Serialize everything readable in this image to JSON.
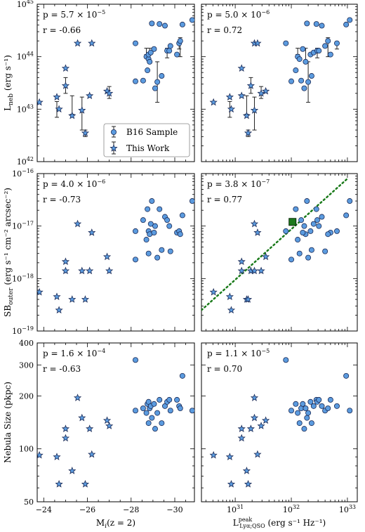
{
  "chart_data": {
    "type": "scatter",
    "x_axes": {
      "left": {
        "label": "M",
        "label_sub": "i",
        "label_rest": "(z = 2)",
        "lim": [
          -23.7,
          -30.9
        ],
        "ticks": [
          -24,
          -26,
          -28,
          -30
        ],
        "tick_labels": [
          "-24",
          "-26",
          "-28",
          "-30"
        ]
      },
      "right": {
        "label": "L",
        "label_sup": "peak",
        "label_sub": "Lyα;QSO",
        "label_rest": "(erg s⁻¹ Hz⁻¹)",
        "log": true,
        "lim": [
          2.5e+30,
          1.5e+33
        ],
        "ticks": [
          1e+31,
          1e+32,
          1e+33
        ],
        "tick_labels": [
          "10^31",
          "10^32",
          "10^33"
        ]
      }
    },
    "rows": [
      {
        "ylabel": "L",
        "ylabel_sub": "neb",
        "ylabel_rest": "(erg s⁻¹)",
        "log": true,
        "ylim": [
          1e+42,
          1e+45
        ],
        "ticks": [
          1e+42,
          1e+43,
          1e+44,
          1e+45
        ],
        "tick_labels": [
          "10^42",
          "10^43",
          "10^44",
          "10^45"
        ],
        "left": {
          "p_mant": "5.7",
          "p_exp": "-5",
          "r": "-0.66"
        },
        "right": {
          "p_mant": "5.0",
          "p_exp": "-6",
          "r": "0.72"
        }
      },
      {
        "ylabel": "SB",
        "ylabel_sub": "outer",
        "ylabel_rest": "(erg s⁻¹ cm⁻² arcsec⁻²)",
        "log": true,
        "ylim": [
          1e-19,
          1e-16
        ],
        "ticks": [
          1e-19,
          1e-18,
          1e-17,
          1e-16
        ],
        "tick_labels": [
          "10^-19",
          "10^-18",
          "10^-17",
          "10^-16"
        ],
        "left": {
          "p_mant": "4.0",
          "p_exp": "-6",
          "r": "-0.73"
        },
        "right": {
          "p_mant": "3.8",
          "p_exp": "-7",
          "r": "0.77"
        }
      },
      {
        "ylabel": "Nebula Size (pkpc)",
        "log": true,
        "ylim": [
          50,
          400
        ],
        "ticks": [
          50,
          100,
          200,
          300,
          400
        ],
        "tick_labels": [
          "50",
          "100",
          "200",
          "300",
          "400"
        ],
        "left": {
          "p_mant": "1.6",
          "p_exp": "-4",
          "r": "-0.63"
        },
        "right": {
          "p_mant": "1.1",
          "p_exp": "-5",
          "r": "0.70"
        }
      }
    ],
    "legend": {
      "placement": "lower right of top-left panel",
      "entries": [
        "B16 Sample",
        "This Work"
      ]
    },
    "series": [
      {
        "name": "B16 Sample",
        "marker": "circle",
        "Mi": [
          -28.2,
          -28.2,
          -28.55,
          -28.7,
          -28.75,
          -28.8,
          -28.8,
          -28.85,
          -28.9,
          -28.95,
          -29.05,
          -29.1,
          -29.2,
          -29.3,
          -29.4,
          -29.55,
          -29.65,
          -29.75,
          -29.8,
          -30.1,
          -30.2,
          -30.25,
          -30.35,
          -30.8
        ],
        "Lpk": [
          8e+31,
          1e+32,
          1.5e+32,
          1.3e+32,
          1.2e+32,
          1.4e+32,
          2.2e+32,
          1.8e+32,
          2.5e+32,
          1.9e+32,
          1.6e+32,
          1.7e+32,
          2e+32,
          2.8e+32,
          2.3e+32,
          3.5e+32,
          2.9e+32,
          3.1e+32,
          4e+32,
          5e+32,
          6.5e+32,
          4.5e+32,
          9.5e+32,
          1.1e+33
        ],
        "Lneb": [
          1.8e+44,
          3.4e+43,
          3.5e+43,
          1e+44,
          5.5e+43,
          9e+43,
          1.1e+44,
          8e+43,
          1.2e+44,
          4.3e+44,
          1.4e+44,
          2.5e+43,
          3.3e+43,
          4.2e+44,
          4.3e+43,
          3.9e+44,
          1.3e+44,
          1.3e+44,
          1.6e+44,
          1.1e+44,
          1.8e+44,
          2e+44,
          4.1e+44,
          5e+44
        ],
        "SB": [
          8e-18,
          2.3e-18,
          1.3e-17,
          5.5e-18,
          2.1e-17,
          3e-18,
          8e-18,
          7e-18,
          1.1e-17,
          3e-17,
          7.5e-18,
          1e-17,
          2.5e-18,
          2.1e-17,
          3.5e-18,
          1.5e-17,
          1.3e-17,
          1e-17,
          3.3e-18,
          7.5e-18,
          8e-18,
          7e-18,
          1.6e-17,
          3e-17
        ],
        "size": [
          320,
          165,
          170,
          160,
          180,
          140,
          185,
          170,
          175,
          150,
          180,
          130,
          160,
          190,
          140,
          175,
          185,
          190,
          165,
          190,
          175,
          170,
          260,
          165
        ],
        "Lneb_err": [
          [
            1.1e+44,
            1.45e+44
          ],
          [
            8e+43,
            1.45e+44
          ],
          [
            1.35e+43,
            8e+43
          ],
          [
            9.5e+43,
            1.45e+44
          ],
          [
            1.4e+44,
            1.9e+44
          ],
          [
            1e+44,
            2.3e+44
          ]
        ],
        "Lneb_err_idx": [
          3,
          7,
          12,
          16,
          20,
          21
        ]
      },
      {
        "name": "This Work",
        "marker": "star",
        "Mi": [
          -23.8,
          -24.6,
          -24.7,
          -25.0,
          -25.0,
          -25.3,
          -25.55,
          -25.75,
          -25.9,
          -26.1,
          -26.2,
          -26.9,
          -27.0
        ],
        "Lpk": [
          4.1e+30,
          8e+30,
          8.5e+30,
          1.3e+31,
          1.9e+31,
          1.6e+31,
          2.2e+31,
          2.2e+31,
          1.7e+31,
          1.3e+31,
          2.5e+31,
          3.5e+31,
          2.9e+31
        ],
        "Lneb": [
          1.35e+43,
          1.7e+43,
          1e+43,
          6e+43,
          2.8e+43,
          7.5e+42,
          1.8e+44,
          9.5e+42,
          3.5e+42,
          1.8e+43,
          1.8e+44,
          2.2e+43,
          2e+43
        ],
        "SB": [
          5.5e-19,
          4.5e-19,
          2.5e-19,
          2.1e-18,
          1.4e-18,
          4e-19,
          1.1e-17,
          1.4e-18,
          4e-19,
          1.4e-18,
          7.5e-18,
          2.6e-18,
          1.4e-18
        ],
        "size": [
          92,
          90,
          63,
          115,
          130,
          75,
          195,
          150,
          63,
          130,
          93,
          145,
          135
        ],
        "Lneb_err": [
          [
            7e+42,
            1.4e+43
          ],
          [
            2e+43,
            4e+43
          ],
          [
            8e+42,
            1.8e+43
          ],
          [
            4e+42,
            1.7e+43
          ],
          [
            3e+42,
            4e+42
          ],
          [
            1.6e+43,
            2.7e+43
          ]
        ],
        "Lneb_err_idx": [
          1,
          4,
          5,
          7,
          8,
          12
        ]
      }
    ],
    "fit_line": {
      "panel": "SB vs Lpeak",
      "style": "dotted",
      "color": "#1a7a1a",
      "x": [
        2.5e+30,
        1e+33
      ],
      "y": [
        2.5e-19,
        8e-17
      ]
    },
    "highlight": {
      "panel": "SB vs Lpeak",
      "marker": "square",
      "color": "#1d7a1d",
      "x": 1.05e+32,
      "y": 1.2e-17
    }
  }
}
